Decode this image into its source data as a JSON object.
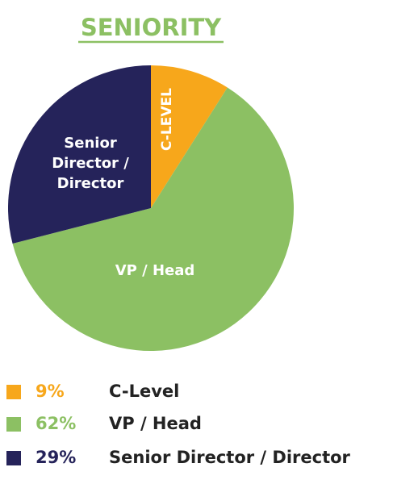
{
  "chart_data": {
    "type": "pie",
    "title": "SENIORITY",
    "title_color": "#8cc063",
    "categories": [
      "C-Level",
      "VP / Head",
      "Senior Director / Director"
    ],
    "values": [
      9,
      62,
      29
    ],
    "value_labels": [
      "9%",
      "62%",
      "29%"
    ],
    "colors": [
      "#f7a71b",
      "#8cc063",
      "#25235a"
    ],
    "slice_labels": [
      [
        "C-LEVEL"
      ],
      [
        "VP / Head"
      ],
      [
        "Senior",
        "Director /",
        "Director"
      ]
    ],
    "legend": "bottom"
  }
}
